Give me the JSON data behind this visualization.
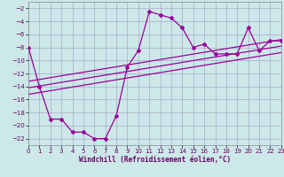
{
  "title": "",
  "xlabel": "Windchill (Refroidissement éolien,°C)",
  "background_color": "#cce8e8",
  "grid_color": "#aaaacc",
  "line_color": "#990099",
  "tick_color": "#660066",
  "x_data": [
    0,
    1,
    2,
    3,
    4,
    5,
    6,
    7,
    8,
    9,
    10,
    11,
    12,
    13,
    14,
    15,
    16,
    17,
    18,
    19,
    20,
    21,
    22,
    23
  ],
  "y_main": [
    -8,
    -14,
    -19,
    -19,
    -21,
    -21,
    -22,
    -22,
    -18.5,
    -11,
    -8.5,
    -2.5,
    -3.0,
    -3.5,
    -5.0,
    -8.0,
    -7.5,
    -9.0,
    -9.0,
    -9.0,
    -5.0,
    -8.5,
    -7.0,
    -7.0
  ],
  "reg_line1_x": [
    0,
    23
  ],
  "reg_line1_y": [
    -13.2,
    -6.8
  ],
  "reg_line2_x": [
    0,
    23
  ],
  "reg_line2_y": [
    -14.2,
    -7.8
  ],
  "reg_line3_x": [
    0,
    23
  ],
  "reg_line3_y": [
    -15.2,
    -8.8
  ],
  "ylim": [
    -23,
    -1
  ],
  "xlim": [
    0,
    23
  ],
  "yticks": [
    -2,
    -4,
    -6,
    -8,
    -10,
    -12,
    -14,
    -16,
    -18,
    -20,
    -22
  ],
  "xticks": [
    0,
    1,
    2,
    3,
    4,
    5,
    6,
    7,
    8,
    9,
    10,
    11,
    12,
    13,
    14,
    15,
    16,
    17,
    18,
    19,
    20,
    21,
    22,
    23
  ],
  "tick_fontsize": 5.0,
  "xlabel_fontsize": 5.5
}
